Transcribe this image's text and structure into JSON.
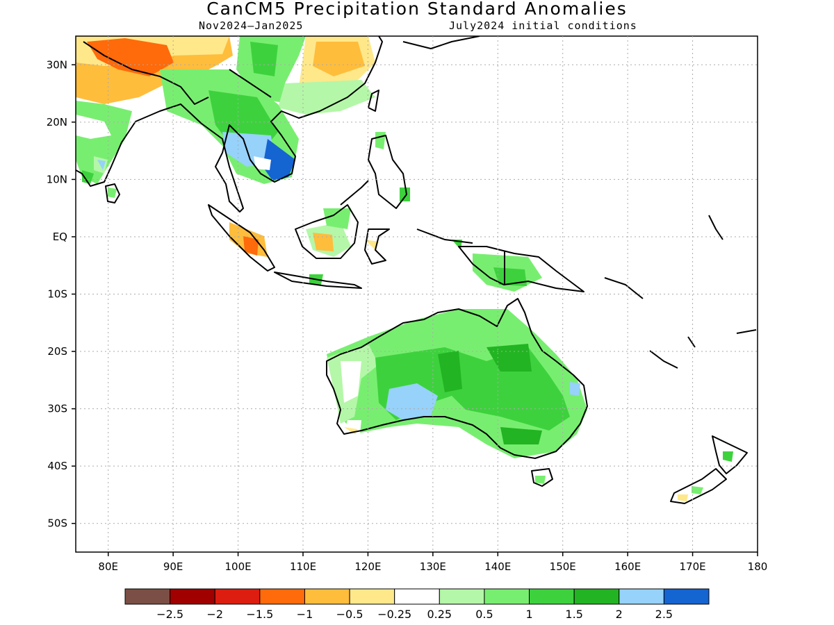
{
  "header": {
    "title": "CanCM5 Precipitation Standard Anomalies",
    "period": "Nov2024–Jan2025",
    "init": "July2024 initial conditions"
  },
  "map": {
    "lon_range": [
      75,
      180
    ],
    "lat_range": [
      -55,
      35
    ],
    "lon_ticks": [
      {
        "v": 80,
        "label": "80E"
      },
      {
        "v": 90,
        "label": "90E"
      },
      {
        "v": 100,
        "label": "100E"
      },
      {
        "v": 110,
        "label": "110E"
      },
      {
        "v": 120,
        "label": "120E"
      },
      {
        "v": 130,
        "label": "130E"
      },
      {
        "v": 140,
        "label": "140E"
      },
      {
        "v": 150,
        "label": "150E"
      },
      {
        "v": 160,
        "label": "160E"
      },
      {
        "v": 170,
        "label": "170E"
      },
      {
        "v": 180,
        "label": "180"
      }
    ],
    "lat_ticks": [
      {
        "v": 30,
        "label": "30N"
      },
      {
        "v": 20,
        "label": "20N"
      },
      {
        "v": 10,
        "label": "10N"
      },
      {
        "v": 0,
        "label": "EQ"
      },
      {
        "v": -10,
        "label": "10S"
      },
      {
        "v": -20,
        "label": "20S"
      },
      {
        "v": -30,
        "label": "30S"
      },
      {
        "v": -40,
        "label": "40S"
      },
      {
        "v": -50,
        "label": "50S"
      }
    ],
    "grid": true
  },
  "colorbar": {
    "colors": [
      "#7b4f45",
      "#a00000",
      "#dc1d0f",
      "#ff6a0a",
      "#ffbd3c",
      "#ffe88a",
      "#ffffff",
      "#b4f7a8",
      "#78ee70",
      "#3dd23d",
      "#22b422",
      "#96d2fa",
      "#1464d2"
    ],
    "labels": [
      "−2.5",
      "−2",
      "−1.5",
      "−1",
      "−0.5",
      "−0.25",
      "0.25",
      "0.5",
      "1",
      "1.5",
      "2",
      "2.5"
    ]
  }
}
